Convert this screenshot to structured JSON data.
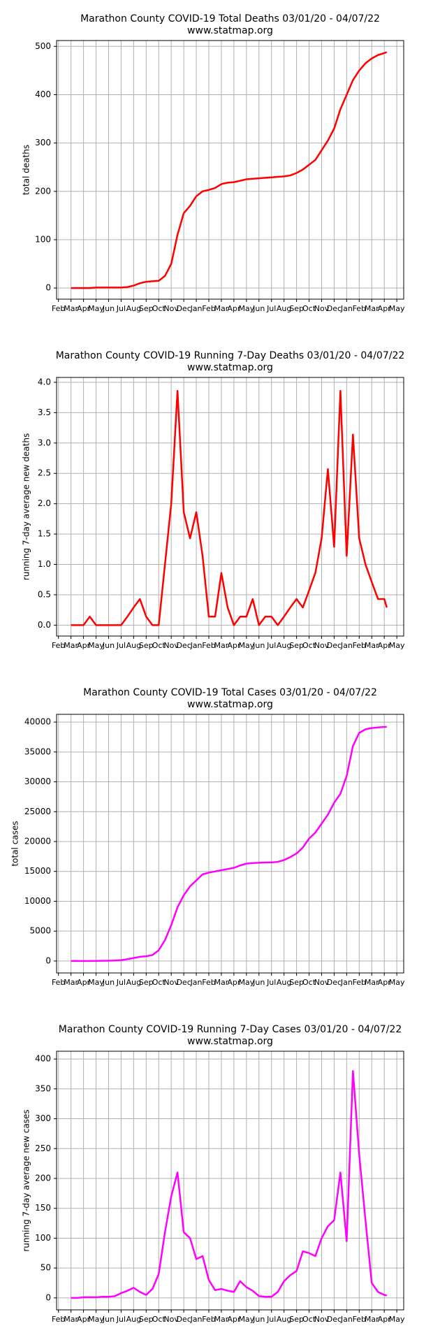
{
  "chart_data": [
    {
      "type": "line",
      "title": "Marathon County COVID-19 Total Deaths 03/01/20 - 04/07/22",
      "subtitle": "www.statmap.org",
      "y_label": "total deaths",
      "color": "#ff0000",
      "grid": true,
      "x": [
        1,
        1.5,
        2,
        2.5,
        3,
        3.5,
        4,
        4.5,
        5,
        5.5,
        6,
        6.5,
        7,
        7.5,
        8,
        8.5,
        9,
        9.5,
        10,
        10.5,
        11,
        11.5,
        12,
        12.5,
        13,
        13.5,
        14,
        14.5,
        15,
        15.5,
        16,
        16.5,
        17,
        17.5,
        18,
        18.5,
        19,
        19.5,
        20,
        20.5,
        21,
        21.5,
        22,
        22.5,
        23,
        23.5,
        24,
        24.5,
        25,
        25.5,
        26,
        26.2
      ],
      "values": [
        0,
        0,
        0,
        0,
        1,
        1,
        1,
        1,
        1,
        2,
        5,
        10,
        13,
        14,
        15,
        25,
        50,
        110,
        155,
        170,
        190,
        200,
        203,
        207,
        215,
        218,
        219,
        222,
        225,
        226,
        227,
        228,
        229,
        230,
        231,
        233,
        238,
        245,
        255,
        265,
        285,
        305,
        330,
        370,
        400,
        430,
        450,
        465,
        475,
        482,
        486,
        488
      ],
      "xlim": [
        -0.15,
        27.55
      ],
      "ylim": [
        -23,
        512
      ],
      "yticks": [
        0,
        100,
        200,
        300,
        400,
        500
      ],
      "xticks": [
        {
          "value": 0,
          "label": "Feb"
        },
        {
          "value": 1,
          "label": "Mar"
        },
        {
          "value": 2,
          "label": "Apr"
        },
        {
          "value": 3,
          "label": "May"
        },
        {
          "value": 4,
          "label": "Jun"
        },
        {
          "value": 5,
          "label": "Jul"
        },
        {
          "value": 6,
          "label": "Aug"
        },
        {
          "value": 7,
          "label": "Sep"
        },
        {
          "value": 8,
          "label": "Oct"
        },
        {
          "value": 9,
          "label": "Nov"
        },
        {
          "value": 10,
          "label": "Dec"
        },
        {
          "value": 11,
          "label": "Jan"
        },
        {
          "value": 12,
          "label": "Feb"
        },
        {
          "value": 13,
          "label": "Mar"
        },
        {
          "value": 14,
          "label": "Apr"
        },
        {
          "value": 15,
          "label": "May"
        },
        {
          "value": 16,
          "label": "Jun"
        },
        {
          "value": 17,
          "label": "Jul"
        },
        {
          "value": 18,
          "label": "Aug"
        },
        {
          "value": 19,
          "label": "Sep"
        },
        {
          "value": 20,
          "label": "Oct"
        },
        {
          "value": 21,
          "label": "Nov"
        },
        {
          "value": 22,
          "label": "Dec"
        },
        {
          "value": 23,
          "label": "Jan"
        },
        {
          "value": 24,
          "label": "Feb"
        },
        {
          "value": 25,
          "label": "Mar"
        },
        {
          "value": 26,
          "label": "Apr"
        },
        {
          "value": 27,
          "label": "May"
        }
      ]
    },
    {
      "type": "line",
      "title": "Marathon County COVID-19 Running 7-Day Deaths 03/01/20 - 04/07/22",
      "subtitle": "www.statmap.org",
      "y_label": "running 7-day average new deaths",
      "color": "#ff0000",
      "grid": true,
      "x": [
        1,
        1.5,
        2,
        2.5,
        3,
        3.5,
        4,
        4.5,
        5,
        5.5,
        6,
        6.5,
        7,
        7.5,
        8,
        8.5,
        9,
        9.5,
        10,
        10.5,
        11,
        11.5,
        12,
        12.5,
        13,
        13.5,
        14,
        14.5,
        15,
        15.5,
        16,
        16.5,
        17,
        17.5,
        18,
        18.5,
        19,
        19.5,
        20,
        20.5,
        21,
        21.5,
        22,
        22.5,
        23,
        23.5,
        24,
        24.5,
        25,
        25.5,
        26,
        26.2
      ],
      "values": [
        0,
        0,
        0,
        0.14,
        0,
        0,
        0,
        0,
        0,
        0.14,
        0.29,
        0.43,
        0.14,
        0,
        0,
        1.0,
        2.0,
        3.86,
        1.86,
        1.43,
        1.86,
        1.14,
        0.14,
        0.14,
        0.86,
        0.29,
        0,
        0.14,
        0.14,
        0.43,
        0,
        0.14,
        0.14,
        0,
        0.14,
        0.29,
        0.43,
        0.29,
        0.57,
        0.86,
        1.43,
        2.57,
        1.29,
        3.86,
        1.14,
        3.14,
        1.43,
        1.0,
        0.71,
        0.43,
        0.43,
        0.29
      ],
      "xlim": [
        -0.15,
        27.55
      ],
      "ylim": [
        -0.18,
        4.08
      ],
      "yticks": [
        {
          "value": 0,
          "label": "0.0"
        },
        0.5,
        {
          "value": 1,
          "label": "1.0"
        },
        1.5,
        {
          "value": 2,
          "label": "2.0"
        },
        2.5,
        {
          "value": 3,
          "label": "3.0"
        },
        3.5,
        {
          "value": 4,
          "label": "4.0"
        }
      ],
      "xticks": [
        {
          "value": 0,
          "label": "Feb"
        },
        {
          "value": 1,
          "label": "Mar"
        },
        {
          "value": 2,
          "label": "Apr"
        },
        {
          "value": 3,
          "label": "May"
        },
        {
          "value": 4,
          "label": "Jun"
        },
        {
          "value": 5,
          "label": "Jul"
        },
        {
          "value": 6,
          "label": "Aug"
        },
        {
          "value": 7,
          "label": "Sep"
        },
        {
          "value": 8,
          "label": "Oct"
        },
        {
          "value": 9,
          "label": "Nov"
        },
        {
          "value": 10,
          "label": "Dec"
        },
        {
          "value": 11,
          "label": "Jan"
        },
        {
          "value": 12,
          "label": "Feb"
        },
        {
          "value": 13,
          "label": "Mar"
        },
        {
          "value": 14,
          "label": "Apr"
        },
        {
          "value": 15,
          "label": "May"
        },
        {
          "value": 16,
          "label": "Jun"
        },
        {
          "value": 17,
          "label": "Jul"
        },
        {
          "value": 18,
          "label": "Aug"
        },
        {
          "value": 19,
          "label": "Sep"
        },
        {
          "value": 20,
          "label": "Oct"
        },
        {
          "value": 21,
          "label": "Nov"
        },
        {
          "value": 22,
          "label": "Dec"
        },
        {
          "value": 23,
          "label": "Jan"
        },
        {
          "value": 24,
          "label": "Feb"
        },
        {
          "value": 25,
          "label": "Mar"
        },
        {
          "value": 26,
          "label": "Apr"
        },
        {
          "value": 27,
          "label": "May"
        }
      ]
    },
    {
      "type": "line",
      "title": "Marathon County COVID-19 Total Cases 03/01/20 - 04/07/22",
      "subtitle": "www.statmap.org",
      "y_label": "total cases",
      "color": "#ff00ff",
      "grid": true,
      "x": [
        1,
        1.5,
        2,
        2.5,
        3,
        3.5,
        4,
        4.5,
        5,
        5.5,
        6,
        6.5,
        7,
        7.5,
        8,
        8.5,
        9,
        9.5,
        10,
        10.5,
        11,
        11.5,
        12,
        12.5,
        13,
        13.5,
        14,
        14.5,
        15,
        15.5,
        16,
        16.5,
        17,
        17.5,
        18,
        18.5,
        19,
        19.5,
        20,
        20.5,
        21,
        21.5,
        22,
        22.5,
        23,
        23.5,
        24,
        24.5,
        25,
        25.5,
        26,
        26.2
      ],
      "values": [
        0,
        0,
        0,
        10,
        20,
        30,
        50,
        80,
        150,
        300,
        500,
        700,
        800,
        1000,
        1800,
        3500,
        6000,
        9000,
        11000,
        12500,
        13500,
        14500,
        14800,
        15000,
        15200,
        15400,
        15600,
        16000,
        16300,
        16400,
        16450,
        16500,
        16500,
        16600,
        16900,
        17400,
        18000,
        19000,
        20500,
        21500,
        23000,
        24500,
        26500,
        28000,
        31000,
        36000,
        38200,
        38800,
        39000,
        39100,
        39200,
        39200
      ],
      "xlim": [
        -0.15,
        27.55
      ],
      "ylim": [
        -2000,
        41300
      ],
      "yticks": [
        0,
        5000,
        10000,
        15000,
        20000,
        25000,
        30000,
        35000,
        40000
      ],
      "xticks": [
        {
          "value": 0,
          "label": "Feb"
        },
        {
          "value": 1,
          "label": "Mar"
        },
        {
          "value": 2,
          "label": "Apr"
        },
        {
          "value": 3,
          "label": "May"
        },
        {
          "value": 4,
          "label": "Jun"
        },
        {
          "value": 5,
          "label": "Jul"
        },
        {
          "value": 6,
          "label": "Aug"
        },
        {
          "value": 7,
          "label": "Sep"
        },
        {
          "value": 8,
          "label": "Oct"
        },
        {
          "value": 9,
          "label": "Nov"
        },
        {
          "value": 10,
          "label": "Dec"
        },
        {
          "value": 11,
          "label": "Jan"
        },
        {
          "value": 12,
          "label": "Feb"
        },
        {
          "value": 13,
          "label": "Mar"
        },
        {
          "value": 14,
          "label": "Apr"
        },
        {
          "value": 15,
          "label": "May"
        },
        {
          "value": 16,
          "label": "Jun"
        },
        {
          "value": 17,
          "label": "Jul"
        },
        {
          "value": 18,
          "label": "Aug"
        },
        {
          "value": 19,
          "label": "Sep"
        },
        {
          "value": 20,
          "label": "Oct"
        },
        {
          "value": 21,
          "label": "Nov"
        },
        {
          "value": 22,
          "label": "Dec"
        },
        {
          "value": 23,
          "label": "Jan"
        },
        {
          "value": 24,
          "label": "Feb"
        },
        {
          "value": 25,
          "label": "Mar"
        },
        {
          "value": 26,
          "label": "Apr"
        },
        {
          "value": 27,
          "label": "May"
        }
      ]
    },
    {
      "type": "line",
      "title": "Marathon County COVID-19 Running 7-Day Cases 03/01/20 - 04/07/22",
      "subtitle": "www.statmap.org",
      "y_label": "running 7-day average new cases",
      "color": "#ff00ff",
      "grid": true,
      "x": [
        1,
        1.5,
        2,
        2.5,
        3,
        3.5,
        4,
        4.5,
        5,
        5.5,
        6,
        6.5,
        7,
        7.5,
        8,
        8.5,
        9,
        9.5,
        10,
        10.5,
        11,
        11.5,
        12,
        12.5,
        13,
        13.5,
        14,
        14.5,
        15,
        15.5,
        16,
        16.5,
        17,
        17.5,
        18,
        18.5,
        19,
        19.5,
        20,
        20.5,
        21,
        21.5,
        22,
        22.5,
        23,
        23.5,
        24,
        24.5,
        25,
        25.5,
        26,
        26.2
      ],
      "values": [
        0,
        0,
        1,
        1,
        1,
        2,
        2,
        3,
        8,
        12,
        17,
        10,
        5,
        15,
        40,
        110,
        170,
        210,
        110,
        100,
        65,
        70,
        30,
        13,
        15,
        12,
        10,
        28,
        18,
        12,
        3,
        2,
        2,
        10,
        28,
        38,
        45,
        78,
        75,
        70,
        100,
        120,
        130,
        210,
        95,
        380,
        240,
        130,
        25,
        10,
        5,
        4
      ],
      "xlim": [
        -0.15,
        27.55
      ],
      "ylim": [
        -20,
        413
      ],
      "yticks": [
        0,
        50,
        100,
        150,
        200,
        250,
        300,
        350,
        400
      ],
      "xticks": [
        {
          "value": 0,
          "label": "Feb"
        },
        {
          "value": 1,
          "label": "Mar"
        },
        {
          "value": 2,
          "label": "Apr"
        },
        {
          "value": 3,
          "label": "May"
        },
        {
          "value": 4,
          "label": "Jun"
        },
        {
          "value": 5,
          "label": "Jul"
        },
        {
          "value": 6,
          "label": "Aug"
        },
        {
          "value": 7,
          "label": "Sep"
        },
        {
          "value": 8,
          "label": "Oct"
        },
        {
          "value": 9,
          "label": "Nov"
        },
        {
          "value": 10,
          "label": "Dec"
        },
        {
          "value": 11,
          "label": "Jan"
        },
        {
          "value": 12,
          "label": "Feb"
        },
        {
          "value": 13,
          "label": "Mar"
        },
        {
          "value": 14,
          "label": "Apr"
        },
        {
          "value": 15,
          "label": "May"
        },
        {
          "value": 16,
          "label": "Jun"
        },
        {
          "value": 17,
          "label": "Jul"
        },
        {
          "value": 18,
          "label": "Aug"
        },
        {
          "value": 19,
          "label": "Sep"
        },
        {
          "value": 20,
          "label": "Oct"
        },
        {
          "value": 21,
          "label": "Nov"
        },
        {
          "value": 22,
          "label": "Dec"
        },
        {
          "value": 23,
          "label": "Jan"
        },
        {
          "value": 24,
          "label": "Feb"
        },
        {
          "value": 25,
          "label": "Mar"
        },
        {
          "value": 26,
          "label": "Apr"
        },
        {
          "value": 27,
          "label": "May"
        }
      ]
    }
  ]
}
